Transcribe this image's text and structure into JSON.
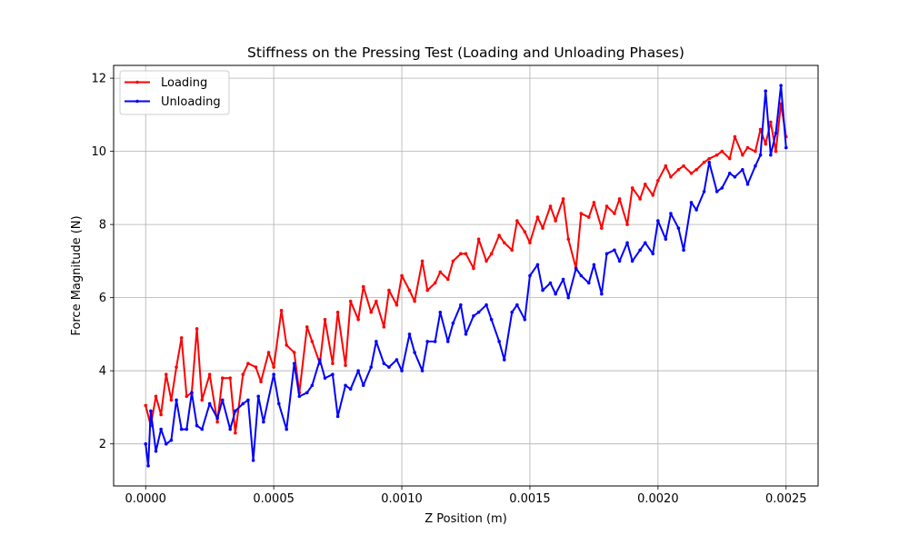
{
  "chart_data": {
    "type": "line",
    "title": "Stiffness on the Pressing Test (Loading and Unloading Phases)",
    "xlabel": "Z Position (m)",
    "ylabel": "Force Magnitude (N)",
    "xlim": [
      -0.000125,
      0.002625
    ],
    "ylim": [
      0.85,
      12.35
    ],
    "xticks": [
      0.0,
      0.0005,
      0.001,
      0.0015,
      0.002,
      0.0025
    ],
    "xtick_labels": [
      "0.0000",
      "0.0005",
      "0.0010",
      "0.0015",
      "0.0020",
      "0.0025"
    ],
    "yticks": [
      2,
      4,
      6,
      8,
      10,
      12
    ],
    "ytick_labels": [
      "2",
      "4",
      "6",
      "8",
      "10",
      "12"
    ],
    "grid": true,
    "legend_position": "top-left",
    "series": [
      {
        "name": "Loading",
        "color": "#ff0000",
        "x": [
          0.0,
          2e-05,
          4e-05,
          6e-05,
          8e-05,
          0.0001,
          0.00012,
          0.00014,
          0.00016,
          0.00018,
          0.0002,
          0.00022,
          0.00025,
          0.00028,
          0.0003,
          0.00033,
          0.00035,
          0.00038,
          0.0004,
          0.00043,
          0.00045,
          0.00048,
          0.0005,
          0.00053,
          0.00055,
          0.00058,
          0.0006,
          0.00063,
          0.00065,
          0.00068,
          0.0007,
          0.00073,
          0.00075,
          0.00078,
          0.0008,
          0.00083,
          0.00085,
          0.00088,
          0.0009,
          0.00093,
          0.00095,
          0.00098,
          0.001,
          0.00103,
          0.00105,
          0.00108,
          0.0011,
          0.00113,
          0.00115,
          0.00118,
          0.0012,
          0.00123,
          0.00125,
          0.00128,
          0.0013,
          0.00133,
          0.00135,
          0.00138,
          0.0014,
          0.00143,
          0.00145,
          0.00148,
          0.0015,
          0.00153,
          0.00155,
          0.00158,
          0.0016,
          0.00163,
          0.00165,
          0.00168,
          0.0017,
          0.00173,
          0.00175,
          0.00178,
          0.0018,
          0.00183,
          0.00185,
          0.00188,
          0.0019,
          0.00193,
          0.00195,
          0.00198,
          0.002,
          0.00203,
          0.00205,
          0.00208,
          0.0021,
          0.00213,
          0.00215,
          0.00218,
          0.0022,
          0.00223,
          0.00225,
          0.00228,
          0.0023,
          0.00233,
          0.00235,
          0.00238,
          0.0024,
          0.00242,
          0.00244,
          0.00246,
          0.00248,
          0.0025
        ],
        "values": [
          3.05,
          2.5,
          3.3,
          2.8,
          3.9,
          3.2,
          4.1,
          4.9,
          3.3,
          3.4,
          5.15,
          3.2,
          3.9,
          2.6,
          3.8,
          3.8,
          2.3,
          3.9,
          4.2,
          4.1,
          3.7,
          4.5,
          4.1,
          5.65,
          4.7,
          4.5,
          3.4,
          5.2,
          4.8,
          4.2,
          5.4,
          4.2,
          5.6,
          4.15,
          5.9,
          5.4,
          6.3,
          5.6,
          5.9,
          5.2,
          6.2,
          5.8,
          6.6,
          6.2,
          5.9,
          7.0,
          6.2,
          6.4,
          6.7,
          6.5,
          7.0,
          7.2,
          7.2,
          6.8,
          7.6,
          7.0,
          7.2,
          7.7,
          7.5,
          7.3,
          8.1,
          7.8,
          7.5,
          8.2,
          7.9,
          8.5,
          8.1,
          8.7,
          7.6,
          6.8,
          8.3,
          8.2,
          8.6,
          7.9,
          8.5,
          8.3,
          8.7,
          8.0,
          9.0,
          8.7,
          9.1,
          8.8,
          9.2,
          9.6,
          9.3,
          9.5,
          9.6,
          9.4,
          9.5,
          9.7,
          9.8,
          9.9,
          10.0,
          9.8,
          10.4,
          9.9,
          10.1,
          10.0,
          10.6,
          10.2,
          10.8,
          10.0,
          11.3,
          10.4
        ]
      },
      {
        "name": "Unloading",
        "color": "#0000ff",
        "x": [
          0.0,
          1e-05,
          2e-05,
          4e-05,
          6e-05,
          8e-05,
          0.0001,
          0.00012,
          0.00014,
          0.00016,
          0.00018,
          0.0002,
          0.00022,
          0.00025,
          0.00028,
          0.0003,
          0.00033,
          0.00035,
          0.00038,
          0.0004,
          0.00042,
          0.00044,
          0.00046,
          0.0005,
          0.00052,
          0.00055,
          0.00058,
          0.0006,
          0.00063,
          0.00065,
          0.00068,
          0.0007,
          0.00073,
          0.00075,
          0.00078,
          0.0008,
          0.00083,
          0.00085,
          0.00088,
          0.0009,
          0.00093,
          0.00095,
          0.00098,
          0.001,
          0.00103,
          0.00105,
          0.00108,
          0.0011,
          0.00113,
          0.00115,
          0.00118,
          0.0012,
          0.00123,
          0.00125,
          0.00128,
          0.0013,
          0.00133,
          0.00135,
          0.00138,
          0.0014,
          0.00143,
          0.00145,
          0.00148,
          0.0015,
          0.00153,
          0.00155,
          0.00158,
          0.0016,
          0.00163,
          0.00165,
          0.00168,
          0.0017,
          0.00173,
          0.00175,
          0.00178,
          0.0018,
          0.00183,
          0.00185,
          0.00188,
          0.0019,
          0.00193,
          0.00195,
          0.00198,
          0.002,
          0.00203,
          0.00205,
          0.00208,
          0.0021,
          0.00213,
          0.00215,
          0.00218,
          0.0022,
          0.00223,
          0.00225,
          0.00228,
          0.0023,
          0.00233,
          0.00235,
          0.00238,
          0.0024,
          0.00242,
          0.00244,
          0.00246,
          0.00248,
          0.0025
        ],
        "values": [
          2.0,
          1.4,
          2.9,
          1.8,
          2.4,
          2.0,
          2.1,
          3.2,
          2.4,
          2.4,
          3.4,
          2.5,
          2.4,
          3.1,
          2.7,
          3.2,
          2.4,
          2.9,
          3.1,
          3.2,
          1.55,
          3.3,
          2.6,
          3.9,
          3.1,
          2.4,
          4.2,
          3.3,
          3.4,
          3.6,
          4.3,
          3.8,
          3.9,
          2.75,
          3.6,
          3.5,
          4.0,
          3.6,
          4.1,
          4.8,
          4.2,
          4.1,
          4.3,
          4.0,
          5.0,
          4.5,
          4.0,
          4.8,
          4.8,
          5.6,
          4.8,
          5.3,
          5.8,
          5.0,
          5.5,
          5.6,
          5.8,
          5.4,
          4.8,
          4.3,
          5.6,
          5.8,
          5.4,
          6.6,
          6.9,
          6.2,
          6.4,
          6.1,
          6.5,
          6.0,
          6.8,
          6.6,
          6.4,
          6.9,
          6.1,
          7.2,
          7.3,
          7.0,
          7.5,
          7.0,
          7.3,
          7.5,
          7.2,
          8.1,
          7.6,
          8.3,
          7.9,
          7.3,
          8.6,
          8.4,
          8.9,
          9.7,
          8.9,
          9.0,
          9.4,
          9.3,
          9.5,
          9.1,
          9.6,
          9.9,
          11.65,
          9.9,
          10.5,
          11.8,
          10.1
        ]
      }
    ]
  }
}
